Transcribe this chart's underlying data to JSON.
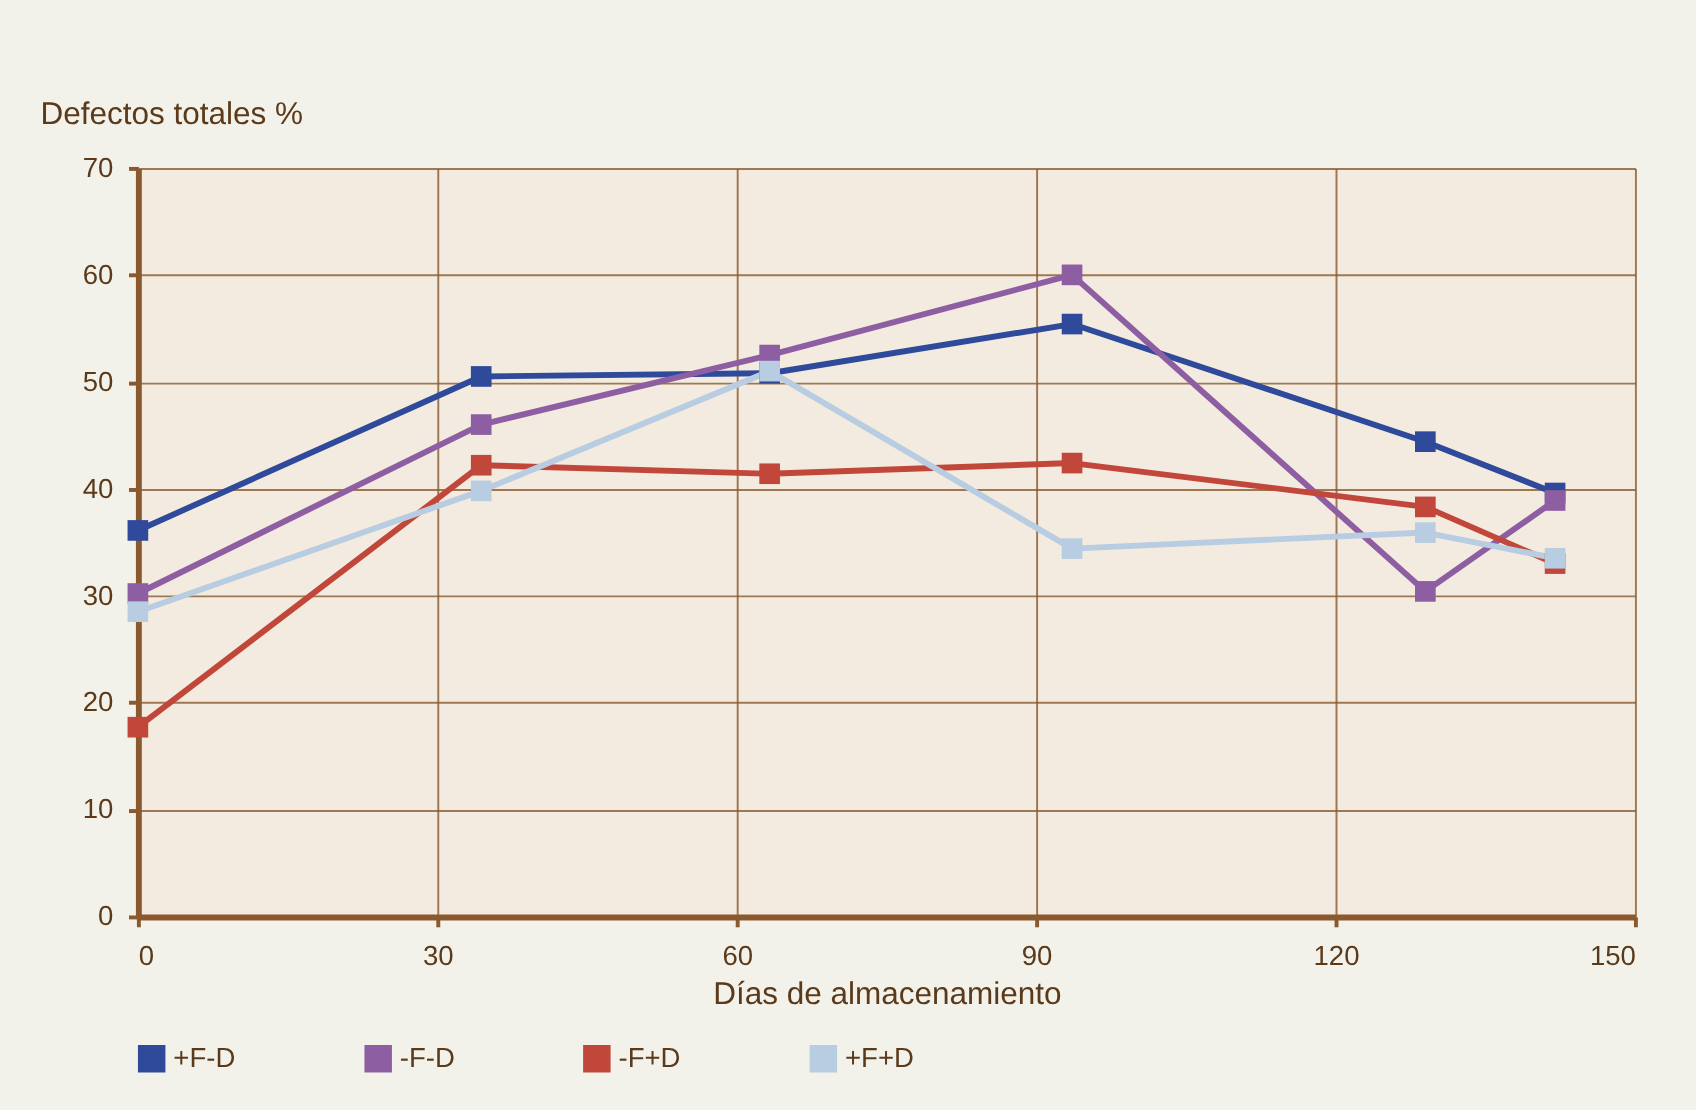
{
  "chart_data": {
    "type": "line",
    "ylabel": "Defectos totales %",
    "xlabel": "Días de almacenamiento",
    "x": [
      0,
      34.4,
      63.3,
      93.6,
      129,
      142
    ],
    "series": [
      {
        "name": "+F-D",
        "color": "#2f4a9b",
        "values": [
          36.1,
          50.5,
          50.8,
          55.4,
          44.4,
          39.6
        ]
      },
      {
        "name": "-F-D",
        "color": "#8e5ea3",
        "values": [
          30.2,
          46.0,
          52.5,
          60.0,
          30.4,
          38.9
        ]
      },
      {
        "name": "-F+D",
        "color": "#c1473b",
        "values": [
          17.7,
          42.2,
          41.4,
          42.4,
          38.3,
          33.0
        ]
      },
      {
        "name": "+F+D",
        "color": "#b8cde1",
        "values": [
          28.5,
          39.8,
          51.0,
          34.4,
          35.9,
          33.5
        ]
      }
    ],
    "xlim": [
      0,
      150
    ],
    "xticks": [
      0,
      30,
      60,
      90,
      120,
      150
    ],
    "ylim": [
      0,
      70
    ],
    "yticks": [
      0,
      10,
      20,
      30,
      40,
      50,
      60,
      70
    ],
    "grid": true,
    "legend": "bottom",
    "marker": "square",
    "line_style": "solid"
  }
}
